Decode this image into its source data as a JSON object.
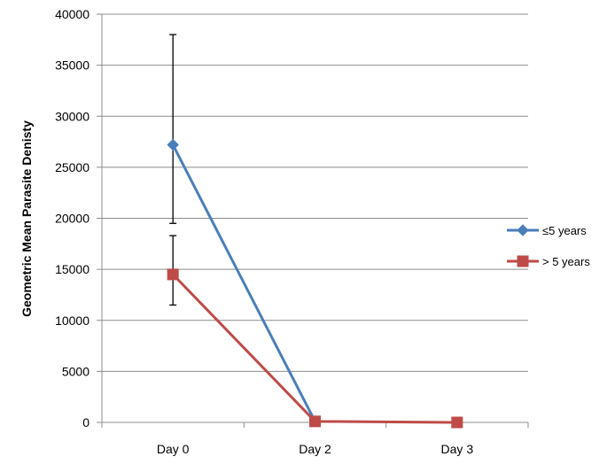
{
  "chart_data": {
    "type": "line",
    "title": "",
    "xlabel": "",
    "ylabel": "Geometric Mean Parasite Denisty",
    "categories": [
      "Day 0",
      "Day 2",
      "Day 3"
    ],
    "ylim": [
      0,
      40000
    ],
    "yticks": [
      0,
      5000,
      10000,
      15000,
      20000,
      25000,
      30000,
      35000,
      40000
    ],
    "grid": true,
    "legend_position": "right",
    "series": [
      {
        "name": "≤5 years",
        "color": "#4a7ebb",
        "marker": "diamond",
        "values": [
          27200,
          100,
          null
        ],
        "error_low": [
          19500,
          null,
          null
        ],
        "error_high": [
          38000,
          null,
          null
        ]
      },
      {
        "name": "> 5 years",
        "color": "#be4b48",
        "marker": "square",
        "values": [
          14500,
          100,
          0
        ],
        "error_low": [
          11500,
          null,
          null
        ],
        "error_high": [
          18300,
          null,
          null
        ]
      }
    ]
  }
}
